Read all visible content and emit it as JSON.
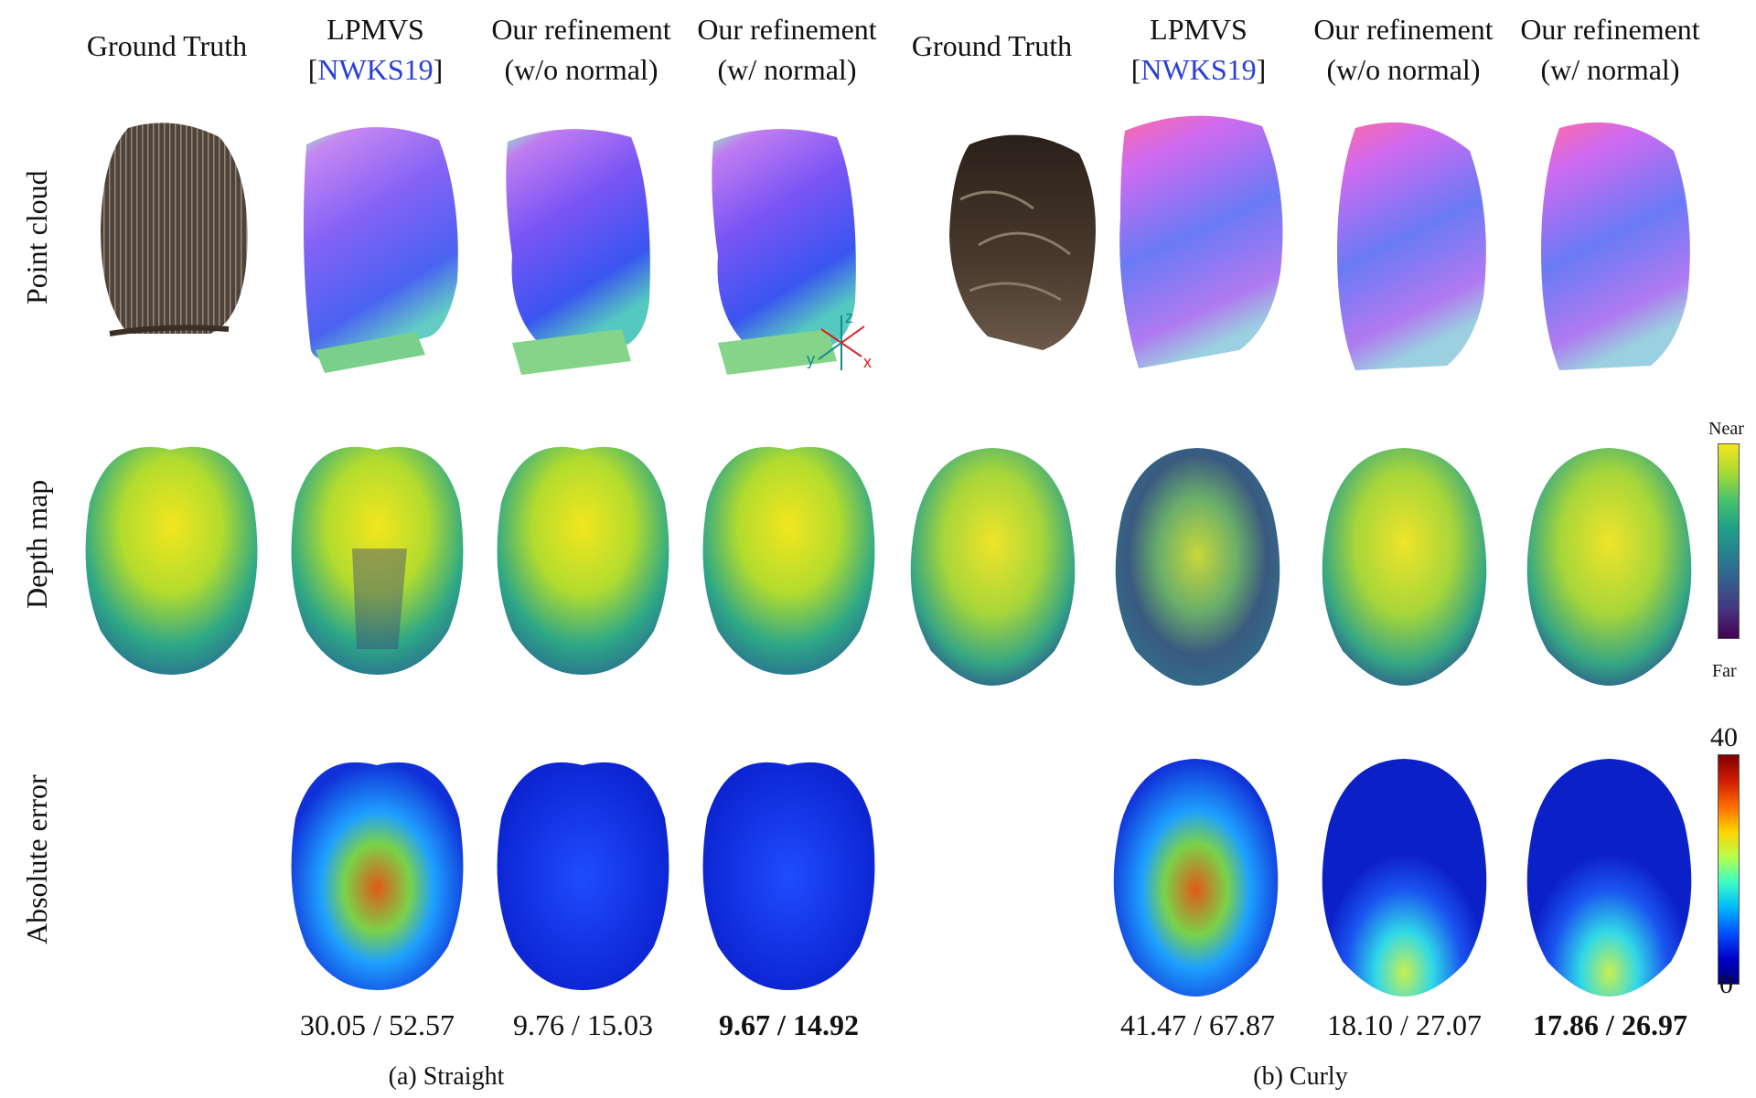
{
  "columns_a": [
    {
      "line1": "Ground Truth",
      "line2": ""
    },
    {
      "line1": "LPMVS",
      "line2_pre": "[",
      "cite": "NWKS19",
      "line2_post": "]"
    },
    {
      "line1": "Our refinement",
      "line2": "(w/o normal)"
    },
    {
      "line1": "Our refinement",
      "line2": "(w/ normal)"
    }
  ],
  "columns_b": [
    {
      "line1": "Ground Truth",
      "line2": ""
    },
    {
      "line1": "LPMVS",
      "line2_pre": "[",
      "cite": "NWKS19",
      "line2_post": "]"
    },
    {
      "line1": "Our refinement",
      "line2": "(w/o normal)"
    },
    {
      "line1": "Our refinement",
      "line2": "(w/ normal)"
    }
  ],
  "row_labels": [
    "Point cloud",
    "Depth map",
    "Absolute error"
  ],
  "metrics_a": [
    "30.05 / 52.57",
    "9.76 / 15.03",
    "9.67 / 14.92"
  ],
  "metrics_b": [
    "41.47 / 67.87",
    "18.10 / 27.07",
    "17.86 / 26.97"
  ],
  "subcaptions": [
    "(a) Straight",
    "(b) Curly"
  ],
  "colorbar_depth": {
    "top": "Near",
    "bottom": "Far"
  },
  "colorbar_error": {
    "top": "40",
    "bottom": "0"
  },
  "axes": {
    "z": "z",
    "y": "y",
    "x": "x"
  },
  "colors": {
    "citation": "#2a3ed8",
    "hair": "#3b2e24"
  }
}
